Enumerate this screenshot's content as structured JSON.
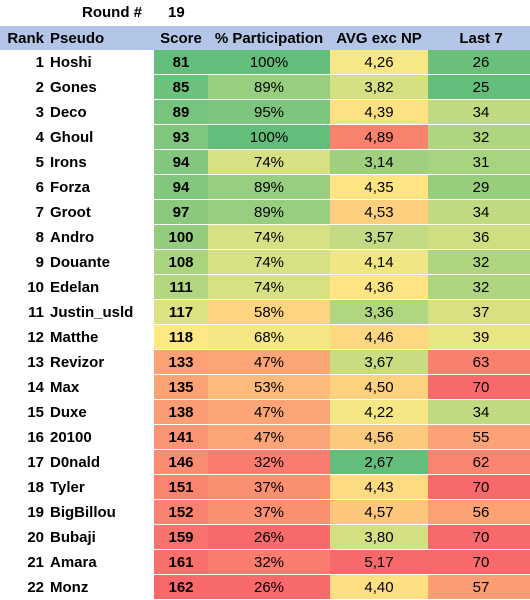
{
  "round": {
    "label": "Round #",
    "value": "19"
  },
  "headers": {
    "rank": "Rank",
    "pseudo": "Pseudo",
    "score": "Score",
    "participation": "% Participation",
    "avg": "AVG exc NP",
    "last7": "Last 7"
  },
  "rows": [
    {
      "rank": "1",
      "pseudo": "Hoshi",
      "score": "81",
      "participation": "100%",
      "avg": "4,26",
      "last7": "26",
      "colors": {
        "score": "#63be7b",
        "participation": "#63be7b",
        "avg": "#f6e884",
        "last7": "#6ac07b"
      }
    },
    {
      "rank": "2",
      "pseudo": "Gones",
      "score": "85",
      "participation": "89%",
      "avg": "3,82",
      "last7": "25",
      "colors": {
        "score": "#6cc17c",
        "participation": "#98ce7f",
        "avg": "#d6df82",
        "last7": "#63be7b"
      }
    },
    {
      "rank": "3",
      "pseudo": "Deco",
      "score": "89",
      "participation": "95%",
      "avg": "4,39",
      "last7": "34",
      "colors": {
        "score": "#76c47d",
        "participation": "#7ec67d",
        "avg": "#fee182",
        "last7": "#c0da81"
      }
    },
    {
      "rank": "4",
      "pseudo": "Ghoul",
      "score": "93",
      "participation": "100%",
      "avg": "4,89",
      "last7": "32",
      "colors": {
        "score": "#80c67d",
        "participation": "#63be7b",
        "avg": "#f8836c",
        "last7": "#b0d580"
      }
    },
    {
      "rank": "5",
      "pseudo": "Irons",
      "score": "94",
      "participation": "74%",
      "avg": "3,14",
      "last7": "31",
      "colors": {
        "score": "#83c77e",
        "participation": "#d7e082",
        "avg": "#a0d07f",
        "last7": "#a8d37f"
      }
    },
    {
      "rank": "6",
      "pseudo": "Forza",
      "score": "94",
      "participation": "89%",
      "avg": "4,35",
      "last7": "29",
      "colors": {
        "score": "#83c77e",
        "participation": "#98ce7f",
        "avg": "#fee582",
        "last7": "#97ce7e"
      }
    },
    {
      "rank": "7",
      "pseudo": "Groot",
      "score": "97",
      "participation": "89%",
      "avg": "4,53",
      "last7": "34",
      "colors": {
        "score": "#8bc97e",
        "participation": "#98ce7f",
        "avg": "#fdcf7e",
        "last7": "#c0da81"
      }
    },
    {
      "rank": "8",
      "pseudo": "Andro",
      "score": "100",
      "participation": "74%",
      "avg": "3,57",
      "last7": "36",
      "colors": {
        "score": "#94cc7e",
        "participation": "#d7e082",
        "avg": "#c2da81",
        "last7": "#d0de82"
      }
    },
    {
      "rank": "9",
      "pseudo": "Douante",
      "score": "108",
      "participation": "74%",
      "avg": "4,14",
      "last7": "32",
      "colors": {
        "score": "#abd47f",
        "participation": "#d7e082",
        "avg": "#f0e784",
        "last7": "#b0d580"
      }
    },
    {
      "rank": "10",
      "pseudo": "Edelan",
      "score": "111",
      "participation": "74%",
      "avg": "4,36",
      "last7": "32",
      "colors": {
        "score": "#b4d680",
        "participation": "#d7e082",
        "avg": "#fee482",
        "last7": "#b0d580"
      }
    },
    {
      "rank": "11",
      "pseudo": "Justin_usld",
      "score": "117",
      "participation": "58%",
      "avg": "3,36",
      "last7": "37",
      "colors": {
        "score": "#dce182",
        "participation": "#fed480",
        "avg": "#b1d680",
        "last7": "#d8e082"
      }
    },
    {
      "rank": "12",
      "pseudo": "Matthe",
      "score": "118",
      "participation": "68%",
      "avg": "4,46",
      "last7": "39",
      "colors": {
        "score": "#fee883",
        "participation": "#f5e884",
        "avg": "#fed880",
        "last7": "#e8e583"
      }
    },
    {
      "rank": "13",
      "pseudo": "Revizor",
      "score": "133",
      "participation": "47%",
      "avg": "3,67",
      "last7": "63",
      "colors": {
        "score": "#fba175",
        "participation": "#fba576",
        "avg": "#c9dc81",
        "last7": "#f97f6f"
      }
    },
    {
      "rank": "14",
      "pseudo": "Max",
      "score": "135",
      "participation": "53%",
      "avg": "4,50",
      "last7": "70",
      "colors": {
        "score": "#fba274",
        "participation": "#fcbb7b",
        "avg": "#fdd27f",
        "last7": "#f8696b"
      }
    },
    {
      "rank": "15",
      "pseudo": "Duxe",
      "score": "138",
      "participation": "47%",
      "avg": "4,22",
      "last7": "34",
      "colors": {
        "score": "#fb9d74",
        "participation": "#fba576",
        "avg": "#f5e884",
        "last7": "#c0da81"
      }
    },
    {
      "rank": "16",
      "pseudo": "20100",
      "score": "141",
      "participation": "47%",
      "avg": "4,56",
      "last7": "55",
      "colors": {
        "score": "#fa9473",
        "participation": "#fba576",
        "avg": "#fdca7d",
        "last7": "#fba276"
      }
    },
    {
      "rank": "17",
      "pseudo": "D0nald",
      "score": "146",
      "participation": "32%",
      "avg": "2,67",
      "last7": "62",
      "colors": {
        "score": "#fa8c71",
        "participation": "#f97c6f",
        "avg": "#63be7b",
        "last7": "#f98470"
      }
    },
    {
      "rank": "18",
      "pseudo": "Tyler",
      "score": "151",
      "participation": "37%",
      "avg": "4,43",
      "last7": "70",
      "colors": {
        "score": "#f98470",
        "participation": "#fa8f71",
        "avg": "#fedb81",
        "last7": "#f8696b"
      }
    },
    {
      "rank": "19",
      "pseudo": "BigBillou",
      "score": "152",
      "participation": "37%",
      "avg": "4,57",
      "last7": "56",
      "colors": {
        "score": "#f9816f",
        "participation": "#fa8f71",
        "avg": "#fdc67d",
        "last7": "#fba174"
      }
    },
    {
      "rank": "20",
      "pseudo": "Bubaji",
      "score": "159",
      "participation": "26%",
      "avg": "3,80",
      "last7": "70",
      "colors": {
        "score": "#f8736d",
        "participation": "#f8696b",
        "avg": "#d5df82",
        "last7": "#f8696b"
      }
    },
    {
      "rank": "21",
      "pseudo": "Amara",
      "score": "161",
      "participation": "32%",
      "avg": "5,17",
      "last7": "70",
      "colors": {
        "score": "#f86f6c",
        "participation": "#f97c6f",
        "avg": "#f8696b",
        "last7": "#f8696b"
      }
    },
    {
      "rank": "22",
      "pseudo": "Monz",
      "score": "162",
      "participation": "26%",
      "avg": "4,40",
      "last7": "57",
      "colors": {
        "score": "#f8696b",
        "participation": "#f8696b",
        "avg": "#fedf82",
        "last7": "#fb9c74"
      }
    }
  ]
}
